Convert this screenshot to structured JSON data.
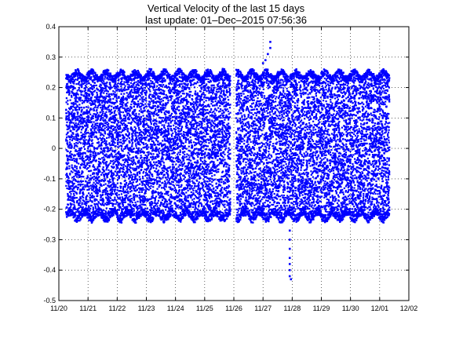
{
  "title": "Vertical Velocity of the last 15 days",
  "subtitle": "last update: 01–Dec–2015 07:56:36",
  "chart_data": {
    "type": "scatter",
    "title": "Vertical Velocity of the last 15 days",
    "subtitle": "last update: 01–Dec–2015 07:56:36",
    "xlabel": "",
    "ylabel": "",
    "xlim": [
      "2015-11-20",
      "2015-12-02"
    ],
    "ylim": [
      -0.5,
      0.4
    ],
    "grid": true,
    "legend": "none",
    "marker_color": "#0000ff",
    "x_ticks": [
      "11/20",
      "11/21",
      "11/22",
      "11/23",
      "11/24",
      "11/25",
      "11/26",
      "11/27",
      "11/28",
      "11/29",
      "11/30",
      "12/01",
      "12/02"
    ],
    "y_ticks": [
      "0.4",
      "0.3",
      "0.2",
      "0.1",
      "0",
      "-0.1",
      "-0.2",
      "-0.3",
      "-0.4",
      "-0.5"
    ],
    "data_coverage": {
      "start": "2015-11-20 06:00",
      "end": "2015-12-01 08:00"
    },
    "envelope": {
      "upper": 0.24,
      "lower": -0.22
    },
    "outliers": [
      {
        "x": "2015-11-27 06:00",
        "y": 0.35
      },
      {
        "x": "2015-11-27 06:00",
        "y": 0.33
      },
      {
        "x": "2015-11-27 04:00",
        "y": 0.31
      },
      {
        "x": "2015-11-27 02:00",
        "y": 0.29
      },
      {
        "x": "2015-11-27 00:00",
        "y": 0.28
      },
      {
        "x": "2015-11-27 22:00",
        "y": -0.27
      },
      {
        "x": "2015-11-27 22:00",
        "y": -0.3
      },
      {
        "x": "2015-11-27 22:00",
        "y": -0.33
      },
      {
        "x": "2015-11-27 22:00",
        "y": -0.36
      },
      {
        "x": "2015-11-27 22:00",
        "y": -0.38
      },
      {
        "x": "2015-11-27 22:00",
        "y": -0.4
      },
      {
        "x": "2015-11-27 22:00",
        "y": -0.42
      },
      {
        "x": "2015-11-27 23:00",
        "y": -0.43
      }
    ]
  }
}
